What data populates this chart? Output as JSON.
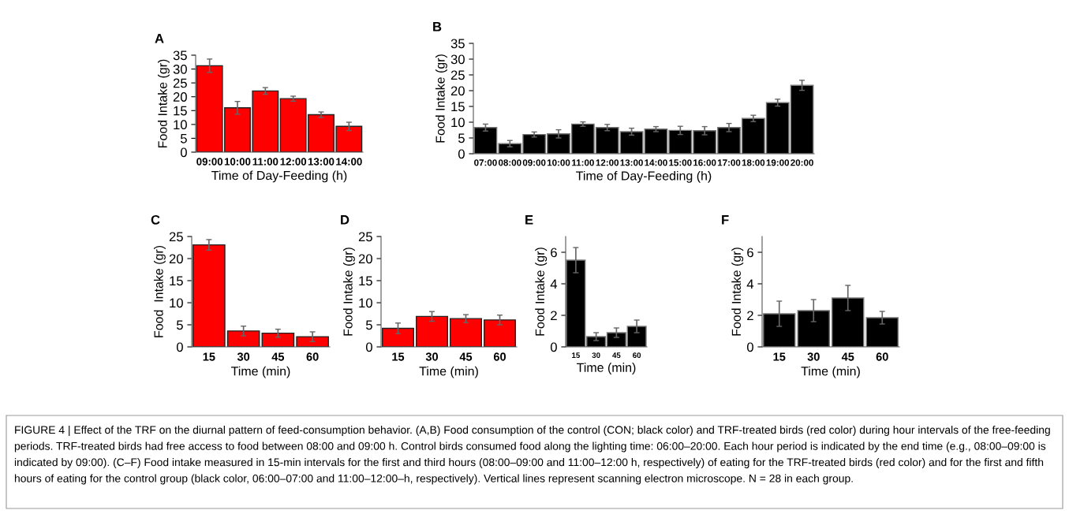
{
  "chart_data": [
    {
      "type": "bar",
      "title": "A",
      "xlabel": "Time of Day-Feeding (h)",
      "ylabel": "Food Intake (gr)",
      "categories": [
        "09:00",
        "10:00",
        "11:00",
        "12:00",
        "13:00",
        "14:00"
      ],
      "color": "#ff0000",
      "values": [
        31.2,
        16.0,
        22.1,
        19.3,
        13.5,
        9.3
      ],
      "errors": [
        2.4,
        2.3,
        1.2,
        0.9,
        1.0,
        1.5
      ],
      "ylim": [
        0,
        35
      ],
      "yticks": [
        0,
        5,
        10,
        15,
        20,
        25,
        30,
        35
      ]
    },
    {
      "type": "bar",
      "title": "B",
      "xlabel": "Time of Day-Feeding (h)",
      "ylabel": "Food Intake (gr)",
      "categories": [
        "07:00",
        "08:00",
        "09:00",
        "10:00",
        "11:00",
        "12:00",
        "13:00",
        "14:00",
        "15:00",
        "16:00",
        "17:00",
        "18:00",
        "19:00",
        "20:00"
      ],
      "color": "#000000",
      "values": [
        8.3,
        3.2,
        6.1,
        6.3,
        9.4,
        8.3,
        7.0,
        7.8,
        7.4,
        7.3,
        8.3,
        11.2,
        16.2,
        21.7
      ],
      "errors": [
        1.1,
        1.0,
        0.8,
        1.3,
        0.7,
        1.0,
        1.1,
        0.8,
        1.3,
        1.3,
        1.3,
        1.0,
        1.1,
        1.6
      ],
      "ylim": [
        0,
        35
      ],
      "yticks": [
        0,
        5,
        10,
        15,
        20,
        25,
        30,
        35
      ]
    },
    {
      "type": "bar",
      "title": "C",
      "xlabel": "Time (min)",
      "ylabel": "Food  Intake (gr)",
      "categories": [
        "15",
        "30",
        "45",
        "60"
      ],
      "color": "#ff0000",
      "values": [
        23.1,
        3.6,
        3.1,
        2.3
      ],
      "errors": [
        1.2,
        1.1,
        0.9,
        1.1
      ],
      "ylim": [
        0,
        25
      ],
      "yticks": [
        0,
        5,
        10,
        15,
        20,
        25
      ]
    },
    {
      "type": "bar",
      "title": "D",
      "xlabel": "Time (min)",
      "ylabel": "Food Intake (gr)",
      "categories": [
        "15",
        "30",
        "45",
        "60"
      ],
      "color": "#ff0000",
      "values": [
        4.2,
        6.9,
        6.4,
        6.1
      ],
      "errors": [
        1.2,
        1.1,
        0.9,
        1.1
      ],
      "ylim": [
        0,
        25
      ],
      "yticks": [
        0,
        5,
        10,
        15,
        20,
        25
      ]
    },
    {
      "type": "bar",
      "title": "E",
      "xlabel": "Time (min)",
      "ylabel": "Food Intake (gr)",
      "categories": [
        "15",
        "30",
        "45",
        "60"
      ],
      "color": "#000000",
      "values": [
        5.5,
        0.65,
        0.9,
        1.3
      ],
      "errors": [
        0.8,
        0.25,
        0.3,
        0.4
      ],
      "ylim": [
        0,
        7
      ],
      "yticks": [
        0,
        2,
        4,
        6
      ]
    },
    {
      "type": "bar",
      "title": "F",
      "xlabel": "Time (min)",
      "ylabel": "Food Intake (gr)",
      "categories": [
        "15",
        "30",
        "45",
        "60"
      ],
      "color": "#000000",
      "values": [
        2.1,
        2.3,
        3.1,
        1.85
      ],
      "errors": [
        0.8,
        0.7,
        0.8,
        0.4
      ],
      "ylim": [
        0,
        7
      ],
      "yticks": [
        0,
        2,
        4,
        6
      ],
      "annotations": [
        "FIGURE 4 | Effect of the TRF on the diurnal pattern of feed-consumption behavior. (A,B) Food consumption of the control (CON; black color) and TRF-treated birds (red color) during hour intervals of the free-feeding periods. TRF-treated birds had free access to food between 08:00 and 09:00 h. Control birds consumed food along the lighting time: 06:00–20:00. Each hour period is indicated by the end time (e.g., 08:00–09:00 is indicated by 09:00). (C–F) Food intake measured in 15-min intervals for the first and third hours (08:00–09:00 and 11:00–12:00 h, respectively) of eating for the TRF-treated birds (red color) and for the first and fifth hours of eating for the control group (black color, 06:00–07:00 and 11:00–12:00–h, respectively). Vertical lines represent scanning electron microscope. N = 28 in each group."
      ]
    }
  ]
}
